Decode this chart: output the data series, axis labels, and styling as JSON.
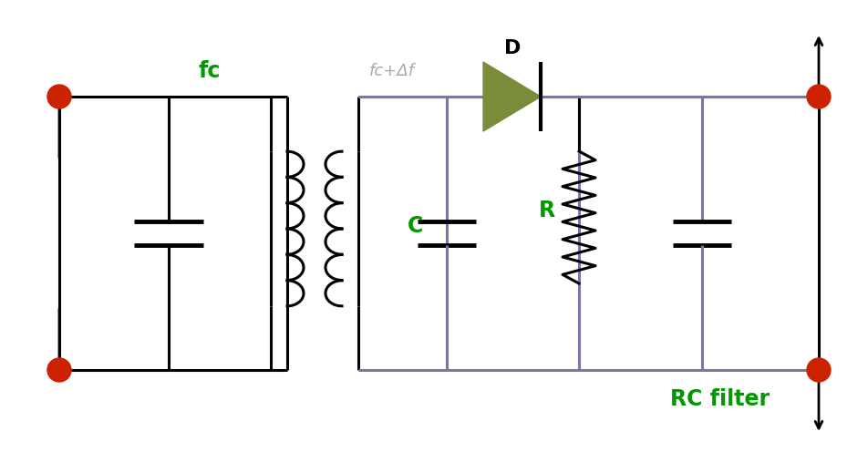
{
  "bg_color": "#ffffff",
  "wire_color": "#000000",
  "wire_color_right": "#7777aa",
  "green_color": "#009900",
  "red_color": "#cc2200",
  "diode_color": "#7a8c3a",
  "label_fc": "fc",
  "label_fc_color": "#009900",
  "label_fdf": "fc+Δf",
  "label_fdf_color": "#aaaaaa",
  "label_D": "D",
  "label_D_color": "#000000",
  "label_C": "C",
  "label_C_color": "#009900",
  "label_R": "R",
  "label_R_color": "#009900",
  "label_RC": "RC filter",
  "label_RC_color": "#009900",
  "figsize": [
    9.52,
    4.96
  ],
  "dpi": 100
}
